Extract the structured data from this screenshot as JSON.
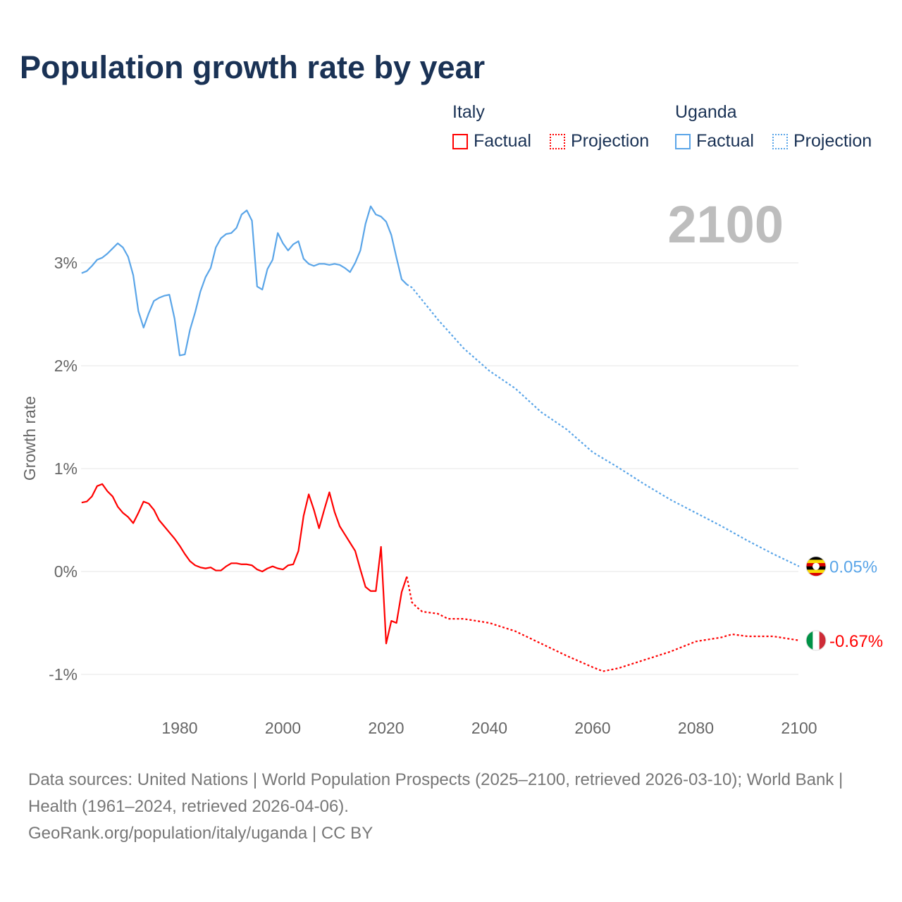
{
  "colors": {
    "italy": "#ff0000",
    "uganda": "#5aa5e8",
    "grid": "#e6e6e6",
    "title": "#1a3255"
  },
  "chart_data": {
    "type": "line",
    "title": "Population growth rate by year",
    "ylabel": "Growth rate",
    "xlabel": "",
    "xlim": [
      1961,
      2100
    ],
    "ylim": [
      -1,
      3.6
    ],
    "xticks": [
      1980,
      2000,
      2020,
      2040,
      2060,
      2080,
      2100
    ],
    "yticks": [
      {
        "v": -1,
        "label": "-1%"
      },
      {
        "v": 0,
        "label": "0%"
      },
      {
        "v": 1,
        "label": "1%"
      },
      {
        "v": 2,
        "label": "2%"
      },
      {
        "v": 3,
        "label": "3%"
      }
    ],
    "current_year": "2100",
    "legend": {
      "groups": [
        {
          "name": "Italy",
          "factual": "Factual",
          "projection": "Projection"
        },
        {
          "name": "Uganda",
          "factual": "Factual",
          "projection": "Projection"
        }
      ]
    },
    "series": [
      {
        "name": "Uganda",
        "end_label": "0.05%",
        "color": "#5aa5e8",
        "factual": {
          "start": 1961,
          "values": [
            2.9,
            2.92,
            2.97,
            3.03,
            3.05,
            3.09,
            3.14,
            3.19,
            3.15,
            3.06,
            2.88,
            2.53,
            2.37,
            2.51,
            2.63,
            2.66,
            2.68,
            2.69,
            2.46,
            2.1,
            2.11,
            2.35,
            2.52,
            2.72,
            2.86,
            2.95,
            3.15,
            3.24,
            3.28,
            3.29,
            3.34,
            3.47,
            3.51,
            3.41,
            2.77,
            2.74,
            2.94,
            3.03,
            3.29,
            3.19,
            3.12,
            3.18,
            3.21,
            3.04,
            2.99,
            2.97,
            2.99,
            2.99,
            2.98,
            2.99,
            2.98,
            2.95,
            2.91,
            3.0,
            3.12,
            3.38,
            3.55,
            3.47,
            3.45,
            3.4,
            3.27,
            3.05,
            2.84,
            2.79
          ]
        },
        "projection": {
          "x": [
            2024,
            2025,
            2030,
            2035,
            2040,
            2045,
            2050,
            2055,
            2060,
            2065,
            2070,
            2075,
            2080,
            2085,
            2090,
            2095,
            2100
          ],
          "values": [
            2.79,
            2.76,
            2.45,
            2.17,
            1.95,
            1.78,
            1.55,
            1.38,
            1.16,
            1.01,
            0.85,
            0.7,
            0.57,
            0.44,
            0.3,
            0.17,
            0.05
          ]
        }
      },
      {
        "name": "Italy",
        "end_label": "-0.67%",
        "color": "#ff0000",
        "factual": {
          "start": 1961,
          "values": [
            0.67,
            0.68,
            0.73,
            0.83,
            0.85,
            0.78,
            0.73,
            0.63,
            0.57,
            0.53,
            0.47,
            0.57,
            0.68,
            0.66,
            0.6,
            0.5,
            0.44,
            0.38,
            0.32,
            0.25,
            0.17,
            0.1,
            0.06,
            0.04,
            0.03,
            0.04,
            0.01,
            0.01,
            0.05,
            0.08,
            0.08,
            0.07,
            0.07,
            0.06,
            0.02,
            0.0,
            0.03,
            0.05,
            0.03,
            0.02,
            0.06,
            0.07,
            0.2,
            0.54,
            0.75,
            0.6,
            0.42,
            0.6,
            0.77,
            0.58,
            0.44,
            0.36,
            0.28,
            0.2,
            0.02,
            -0.15,
            -0.19,
            -0.19,
            0.24,
            -0.7,
            -0.48,
            -0.5,
            -0.2,
            -0.05
          ]
        },
        "projection": {
          "x": [
            2024,
            2025,
            2026,
            2027,
            2030,
            2032,
            2035,
            2040,
            2045,
            2050,
            2055,
            2060,
            2062,
            2065,
            2070,
            2075,
            2080,
            2085,
            2087,
            2090,
            2095,
            2100
          ],
          "values": [
            -0.05,
            -0.3,
            -0.35,
            -0.39,
            -0.41,
            -0.46,
            -0.46,
            -0.5,
            -0.58,
            -0.7,
            -0.82,
            -0.93,
            -0.97,
            -0.94,
            -0.86,
            -0.78,
            -0.68,
            -0.64,
            -0.61,
            -0.63,
            -0.63,
            -0.67
          ]
        }
      }
    ]
  },
  "footer": {
    "sources": "Data sources: United Nations | World Population Prospects (2025–2100, retrieved 2026-03-10); World Bank | Health (1961–2024, retrieved 2026-04-06).",
    "credit": "GeoRank.org/population/italy/uganda | CC BY"
  }
}
